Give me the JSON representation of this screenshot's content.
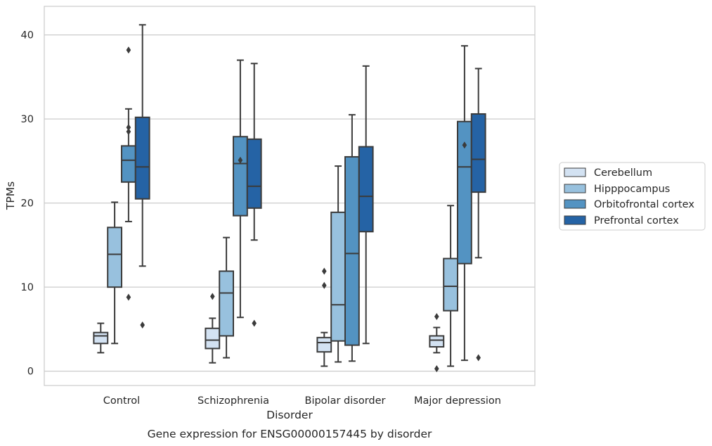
{
  "chart_data": {
    "type": "box",
    "title": "Gene expression for ENSG00000157445 by disorder",
    "xlabel": "Disorder",
    "ylabel": "TPMs",
    "categories": [
      "Control",
      "Schizophrenia",
      "Bipolar disorder",
      "Major depression"
    ],
    "ylim": [
      -1.7,
      43.4
    ],
    "yticks": [
      0,
      10,
      20,
      30,
      40
    ],
    "grid": "horizontal",
    "legend_position": "right",
    "colors": [
      "#d3e2f2",
      "#98c1de",
      "#5393c2",
      "#2563a5"
    ],
    "series": [
      {
        "name": "Cerebellum",
        "boxes": [
          {
            "whisker_low": 2.2,
            "q1": 3.3,
            "median": 4.2,
            "q3": 4.6,
            "whisker_high": 5.7,
            "outliers": []
          },
          {
            "whisker_low": 1.0,
            "q1": 2.7,
            "median": 3.7,
            "q3": 5.1,
            "whisker_high": 6.3,
            "outliers": [
              8.9
            ]
          },
          {
            "whisker_low": 0.6,
            "q1": 2.3,
            "median": 3.4,
            "q3": 4.0,
            "whisker_high": 4.6,
            "outliers": [
              10.2,
              11.9
            ]
          },
          {
            "whisker_low": 2.2,
            "q1": 2.9,
            "median": 3.7,
            "q3": 4.2,
            "whisker_high": 5.2,
            "outliers": [
              0.3,
              6.5
            ]
          }
        ]
      },
      {
        "name": "Hipppocampus",
        "boxes": [
          {
            "whisker_low": 3.3,
            "q1": 10.0,
            "median": 13.9,
            "q3": 17.1,
            "whisker_high": 20.1,
            "outliers": []
          },
          {
            "whisker_low": 1.6,
            "q1": 4.2,
            "median": 9.3,
            "q3": 11.9,
            "whisker_high": 15.9,
            "outliers": []
          },
          {
            "whisker_low": 1.1,
            "q1": 3.6,
            "median": 7.9,
            "q3": 18.9,
            "whisker_high": 24.4,
            "outliers": []
          },
          {
            "whisker_low": 0.6,
            "q1": 7.2,
            "median": 10.1,
            "q3": 13.4,
            "whisker_high": 19.7,
            "outliers": []
          }
        ]
      },
      {
        "name": "Orbitofrontal cortex",
        "boxes": [
          {
            "whisker_low": 17.8,
            "q1": 22.5,
            "median": 25.1,
            "q3": 26.8,
            "whisker_high": 31.2,
            "outliers": [
              8.8,
              28.5,
              29.0,
              38.2
            ]
          },
          {
            "whisker_low": 6.4,
            "q1": 18.5,
            "median": 24.7,
            "q3": 27.9,
            "whisker_high": 37.0,
            "outliers": [
              25.1
            ]
          },
          {
            "whisker_low": 1.2,
            "q1": 3.1,
            "median": 14.0,
            "q3": 25.5,
            "whisker_high": 30.5,
            "outliers": []
          },
          {
            "whisker_low": 1.3,
            "q1": 12.8,
            "median": 24.3,
            "q3": 29.7,
            "whisker_high": 38.7,
            "outliers": [
              26.9
            ]
          }
        ]
      },
      {
        "name": "Prefrontal cortex",
        "boxes": [
          {
            "whisker_low": 12.5,
            "q1": 20.5,
            "median": 24.3,
            "q3": 30.2,
            "whisker_high": 41.2,
            "outliers": [
              5.5
            ]
          },
          {
            "whisker_low": 15.6,
            "q1": 19.4,
            "median": 22.0,
            "q3": 27.6,
            "whisker_high": 36.6,
            "outliers": [
              5.7
            ]
          },
          {
            "whisker_low": 3.3,
            "q1": 16.6,
            "median": 20.8,
            "q3": 26.7,
            "whisker_high": 36.3,
            "outliers": []
          },
          {
            "whisker_low": 13.5,
            "q1": 21.3,
            "median": 25.2,
            "q3": 30.6,
            "whisker_high": 36.0,
            "outliers": [
              1.6
            ]
          }
        ]
      }
    ]
  }
}
